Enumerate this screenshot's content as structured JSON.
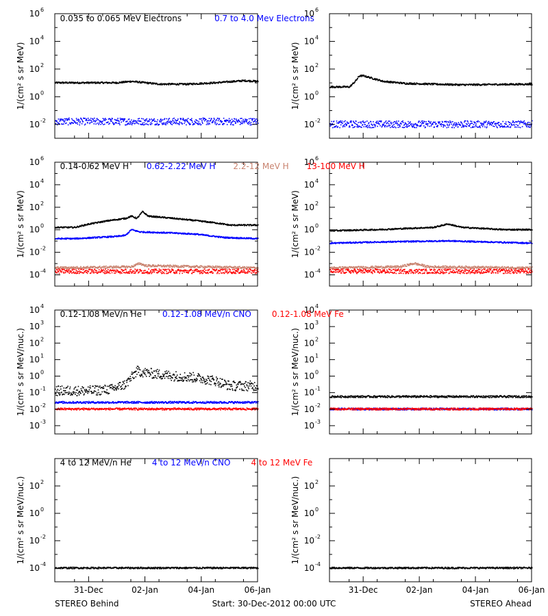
{
  "footer": {
    "left": "STEREO Behind",
    "center": "Start: 30-Dec-2012 00:00 UTC",
    "right": "STEREO Ahead"
  },
  "colors": {
    "black": "#000000",
    "blue": "#0000ff",
    "tan": "#c8826e",
    "red": "#ff0000"
  },
  "x_axis": {
    "ticks": [
      {
        "day": 1.5,
        "label": "31-Dec"
      },
      {
        "day": 3.5,
        "label": "02-Jan"
      },
      {
        "day": 5.5,
        "label": "04-Jan"
      },
      {
        "day": 7.5,
        "label": "06-Jan"
      }
    ],
    "minor_ticks": [
      1,
      2,
      3,
      4,
      5,
      6,
      7
    ],
    "range_days": [
      0.3,
      7.5
    ]
  },
  "chart_data": [
    {
      "id": "electrons",
      "type": "scatter",
      "scale": "log",
      "ylim_exp": [
        -3,
        6
      ],
      "y_ticks": [
        -2,
        0,
        2,
        4,
        6
      ],
      "ylabel": "1/(cm² s sr MeV)",
      "titles": [
        {
          "text": "0.035 to 0.065 MeV Electrons",
          "color": "black"
        },
        {
          "text": "0.7 to 4.0 Mev Electrons",
          "color": "blue"
        }
      ],
      "panels": [
        {
          "side": "behind",
          "series": [
            {
              "color": "black",
              "points": [
                [
                  0.3,
                  1.0
                ],
                [
                  1.5,
                  1.0
                ],
                [
                  2.5,
                  1.0
                ],
                [
                  3.0,
                  1.1
                ],
                [
                  4.0,
                  0.9
                ],
                [
                  5.0,
                  0.9
                ],
                [
                  6.0,
                  1.0
                ],
                [
                  7.0,
                  1.15
                ],
                [
                  7.5,
                  1.1
                ]
              ]
            },
            {
              "color": "blue",
              "points": [
                [
                  0.3,
                  -1.8
                ],
                [
                  7.5,
                  -1.8
                ]
              ],
              "spread": 0.5
            }
          ]
        },
        {
          "side": "ahead",
          "series": [
            {
              "color": "black",
              "points": [
                [
                  0.3,
                  0.7
                ],
                [
                  1.0,
                  0.7
                ],
                [
                  1.2,
                  1.1
                ],
                [
                  1.35,
                  1.5
                ],
                [
                  1.5,
                  1.5
                ],
                [
                  2.2,
                  1.1
                ],
                [
                  3.0,
                  0.95
                ],
                [
                  5.0,
                  0.85
                ],
                [
                  7.5,
                  0.9
                ]
              ]
            },
            {
              "color": "blue",
              "points": [
                [
                  0.3,
                  -2.0
                ],
                [
                  7.5,
                  -2.0
                ]
              ],
              "spread": 0.5
            }
          ]
        }
      ]
    },
    {
      "id": "protons",
      "type": "scatter",
      "scale": "log",
      "ylim_exp": [
        -5,
        6
      ],
      "y_ticks": [
        -4,
        -2,
        0,
        2,
        4,
        6
      ],
      "ylabel": "1/(cm² s sr MeV)",
      "titles": [
        {
          "text": "0.14-0.62 MeV H",
          "color": "black"
        },
        {
          "text": "0.62-2.22 MeV H",
          "color": "blue"
        },
        {
          "text": "2.2-12 MeV H",
          "color": "tan"
        },
        {
          "text": "13-100 MeV H",
          "color": "red"
        }
      ],
      "panels": [
        {
          "side": "behind",
          "series": [
            {
              "color": "black",
              "points": [
                [
                  0.3,
                  0.2
                ],
                [
                  1.0,
                  0.2
                ],
                [
                  1.5,
                  0.5
                ],
                [
                  2.2,
                  0.8
                ],
                [
                  2.8,
                  1.0
                ],
                [
                  3.0,
                  1.2
                ],
                [
                  3.2,
                  1.0
                ],
                [
                  3.4,
                  1.6
                ],
                [
                  3.6,
                  1.2
                ],
                [
                  4.5,
                  1.0
                ],
                [
                  5.3,
                  0.8
                ],
                [
                  6.0,
                  0.6
                ],
                [
                  6.5,
                  0.4
                ],
                [
                  7.5,
                  0.4
                ]
              ]
            },
            {
              "color": "blue",
              "points": [
                [
                  0.3,
                  -0.8
                ],
                [
                  1.0,
                  -0.8
                ],
                [
                  2.5,
                  -0.6
                ],
                [
                  2.8,
                  -0.5
                ],
                [
                  3.0,
                  0.0
                ],
                [
                  3.3,
                  -0.2
                ],
                [
                  4.5,
                  -0.3
                ],
                [
                  5.3,
                  -0.4
                ],
                [
                  6.3,
                  -0.7
                ],
                [
                  7.5,
                  -0.8
                ]
              ]
            },
            {
              "color": "tan",
              "points": [
                [
                  0.3,
                  -3.4
                ],
                [
                  3.0,
                  -3.3
                ],
                [
                  3.3,
                  -3.0
                ],
                [
                  3.5,
                  -3.2
                ],
                [
                  7.5,
                  -3.4
                ]
              ],
              "spread": 0.2
            },
            {
              "color": "red",
              "points": [
                [
                  0.3,
                  -3.7
                ],
                [
                  7.5,
                  -3.7
                ]
              ],
              "spread": 0.4
            }
          ]
        },
        {
          "side": "ahead",
          "series": [
            {
              "color": "black",
              "points": [
                [
                  0.3,
                  -0.1
                ],
                [
                  2.0,
                  0.0
                ],
                [
                  4.0,
                  0.2
                ],
                [
                  4.5,
                  0.5
                ],
                [
                  5.0,
                  0.2
                ],
                [
                  6.5,
                  0.0
                ],
                [
                  7.5,
                  0.0
                ]
              ]
            },
            {
              "color": "blue",
              "points": [
                [
                  0.3,
                  -1.2
                ],
                [
                  2.0,
                  -1.1
                ],
                [
                  4.5,
                  -1.0
                ],
                [
                  7.5,
                  -1.2
                ]
              ]
            },
            {
              "color": "tan",
              "points": [
                [
                  0.3,
                  -3.4
                ],
                [
                  2.8,
                  -3.3
                ],
                [
                  3.3,
                  -3.0
                ],
                [
                  3.8,
                  -3.3
                ],
                [
                  7.5,
                  -3.4
                ]
              ],
              "spread": 0.2
            },
            {
              "color": "red",
              "points": [
                [
                  0.3,
                  -3.7
                ],
                [
                  7.5,
                  -3.7
                ]
              ],
              "spread": 0.4
            }
          ]
        }
      ]
    },
    {
      "id": "heavy-low",
      "type": "scatter",
      "scale": "log",
      "ylim_exp": [
        -3.5,
        4
      ],
      "y_ticks": [
        -3,
        -2,
        -1,
        0,
        1,
        2,
        3,
        4
      ],
      "ylabel": "1/(cm² s sr MeV/nuc.)",
      "titles": [
        {
          "text": "0.12-1.08 MeV/n He",
          "color": "black"
        },
        {
          "text": "0.12-1.08 MeV/n CNO",
          "color": "blue"
        },
        {
          "text": "0.12-1.08 MeV Fe",
          "color": "red"
        }
      ],
      "panels": [
        {
          "side": "behind",
          "series": [
            {
              "color": "black",
              "points": [
                [
                  0.3,
                  -0.9
                ],
                [
                  1.5,
                  -0.9
                ],
                [
                  2.3,
                  -0.8
                ],
                [
                  2.8,
                  -0.5
                ],
                [
                  3.2,
                  0.3
                ],
                [
                  3.5,
                  0.2
                ],
                [
                  4.5,
                  0.0
                ],
                [
                  5.3,
                  -0.1
                ],
                [
                  6.0,
                  -0.3
                ],
                [
                  6.5,
                  -0.6
                ],
                [
                  7.5,
                  -0.6
                ]
              ],
              "spread": 0.6
            },
            {
              "color": "blue",
              "points": [
                [
                  0.3,
                  -1.6
                ],
                [
                  7.5,
                  -1.6
                ]
              ]
            },
            {
              "color": "red",
              "points": [
                [
                  0.3,
                  -2.0
                ],
                [
                  7.5,
                  -2.0
                ]
              ]
            }
          ]
        },
        {
          "side": "ahead",
          "series": [
            {
              "color": "black",
              "points": [
                [
                  0.3,
                  -1.25
                ],
                [
                  7.5,
                  -1.25
                ]
              ]
            },
            {
              "color": "blue",
              "points": [
                [
                  0.3,
                  -2.0
                ],
                [
                  7.5,
                  -2.0
                ]
              ]
            },
            {
              "color": "red",
              "points": [
                [
                  0.3,
                  -2.0
                ],
                [
                  7.5,
                  -2.0
                ]
              ]
            }
          ]
        }
      ]
    },
    {
      "id": "heavy-high",
      "type": "scatter",
      "scale": "log",
      "ylim_exp": [
        -5,
        4
      ],
      "y_ticks": [
        -4,
        -2,
        0,
        2
      ],
      "ylabel": "1/(cm² s sr MeV/nuc.)",
      "titles": [
        {
          "text": "4 to 12 MeV/n He",
          "color": "black"
        },
        {
          "text": "4 to 12 MeV/n CNO",
          "color": "blue"
        },
        {
          "text": "4 to 12 MeV Fe",
          "color": "red"
        }
      ],
      "panels": [
        {
          "side": "behind",
          "series": [
            {
              "color": "black",
              "points": [
                [
                  0.3,
                  -4.0
                ],
                [
                  7.5,
                  -4.0
                ]
              ]
            }
          ]
        },
        {
          "side": "ahead",
          "series": [
            {
              "color": "black",
              "points": [
                [
                  0.3,
                  -4.0
                ],
                [
                  7.5,
                  -4.0
                ]
              ]
            }
          ]
        }
      ]
    }
  ]
}
